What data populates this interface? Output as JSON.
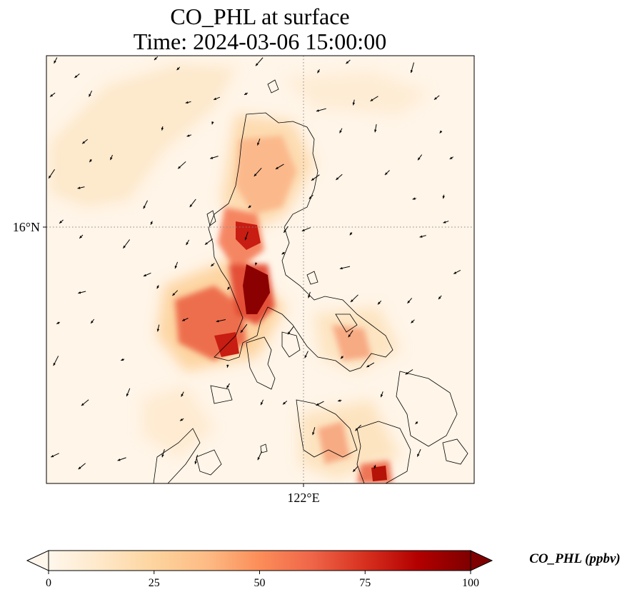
{
  "title": {
    "line1": "CO_PHL at surface",
    "line2": "Time: 2024-03-06 15:00:00"
  },
  "map": {
    "lat_tick_label": "16°N",
    "lon_tick_label": "122°E",
    "gridline_style": "dotted"
  },
  "colorbar": {
    "label": "CO_PHL (ppbv)",
    "colormap": "OrRd",
    "min": 0,
    "max": 100,
    "extend": "both",
    "ticks": [
      {
        "value": 0,
        "label": "0"
      },
      {
        "value": 25,
        "label": "25"
      },
      {
        "value": 50,
        "label": "50"
      },
      {
        "value": 75,
        "label": "75"
      },
      {
        "value": 100,
        "label": "100"
      }
    ],
    "colors": [
      "#fff7ec",
      "#fee8c8",
      "#fdd49e",
      "#fdbb84",
      "#fc8d59",
      "#ef6548",
      "#d7301f",
      "#b30000",
      "#7f0000"
    ]
  }
}
